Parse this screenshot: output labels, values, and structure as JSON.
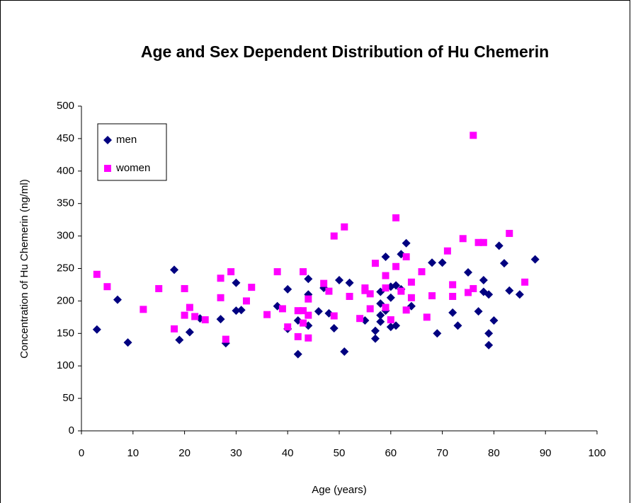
{
  "chart_data": {
    "type": "scatter",
    "title": "Age and Sex Dependent Distribution of Hu Chemerin",
    "x_label": "Age (years)",
    "y_label": "Concentration of Hu Chemerin (ng/ml)",
    "xlim": [
      0,
      100
    ],
    "xticks": [
      0,
      10,
      20,
      30,
      40,
      50,
      60,
      70,
      80,
      90,
      100
    ],
    "ylim": [
      0,
      500
    ],
    "yticks": [
      0,
      50,
      100,
      150,
      200,
      250,
      300,
      350,
      400,
      450,
      500
    ],
    "grid": false,
    "legend": "upper left",
    "series": [
      {
        "name": "men",
        "color": "#000080",
        "marker": "diamond",
        "x": [
          3,
          9,
          7,
          18,
          19,
          21,
          23,
          27,
          28,
          30,
          30,
          31,
          38,
          40,
          40,
          42,
          42,
          44,
          44,
          44,
          46,
          47,
          48,
          49,
          50,
          51,
          52,
          55,
          57,
          57,
          58,
          58,
          58,
          58,
          59,
          59,
          60,
          60,
          60,
          61,
          61,
          62,
          62,
          63,
          64,
          68,
          69,
          70,
          72,
          73,
          75,
          77,
          78,
          78,
          79,
          79,
          79,
          80,
          81,
          82,
          83,
          85,
          88
        ],
        "values": [
          156,
          136,
          202,
          248,
          140,
          152,
          173,
          172,
          135,
          228,
          185,
          186,
          192,
          218,
          157,
          170,
          118,
          234,
          210,
          162,
          184,
          220,
          181,
          158,
          232,
          122,
          228,
          170,
          154,
          142,
          214,
          196,
          178,
          168,
          268,
          185,
          222,
          205,
          160,
          224,
          162,
          272,
          218,
          289,
          192,
          259,
          150,
          259,
          182,
          162,
          244,
          184,
          232,
          214,
          150,
          132,
          210,
          170,
          285,
          258,
          216,
          210,
          264
        ]
      },
      {
        "name": "women",
        "color": "#ff00ff",
        "marker": "square",
        "x": [
          3,
          5,
          12,
          15,
          18,
          20,
          20,
          21,
          22,
          24,
          27,
          27,
          28,
          29,
          32,
          33,
          36,
          38,
          39,
          40,
          42,
          42,
          43,
          43,
          43,
          44,
          44,
          44,
          47,
          48,
          49,
          49,
          51,
          52,
          54,
          55,
          55,
          56,
          56,
          57,
          59,
          59,
          59,
          60,
          61,
          61,
          62,
          63,
          63,
          64,
          64,
          66,
          67,
          68,
          71,
          72,
          72,
          74,
          75,
          76,
          76,
          77,
          78,
          83,
          86
        ],
        "values": [
          241,
          222,
          187,
          219,
          157,
          219,
          178,
          190,
          176,
          171,
          235,
          205,
          141,
          245,
          200,
          221,
          179,
          245,
          188,
          160,
          185,
          145,
          245,
          185,
          166,
          143,
          178,
          203,
          227,
          215,
          300,
          177,
          314,
          207,
          173,
          220,
          216,
          211,
          188,
          258,
          239,
          220,
          190,
          171,
          328,
          253,
          215,
          268,
          186,
          229,
          205,
          245,
          175,
          208,
          277,
          225,
          207,
          296,
          213,
          455,
          219,
          290,
          290,
          304,
          229
        ]
      }
    ]
  }
}
